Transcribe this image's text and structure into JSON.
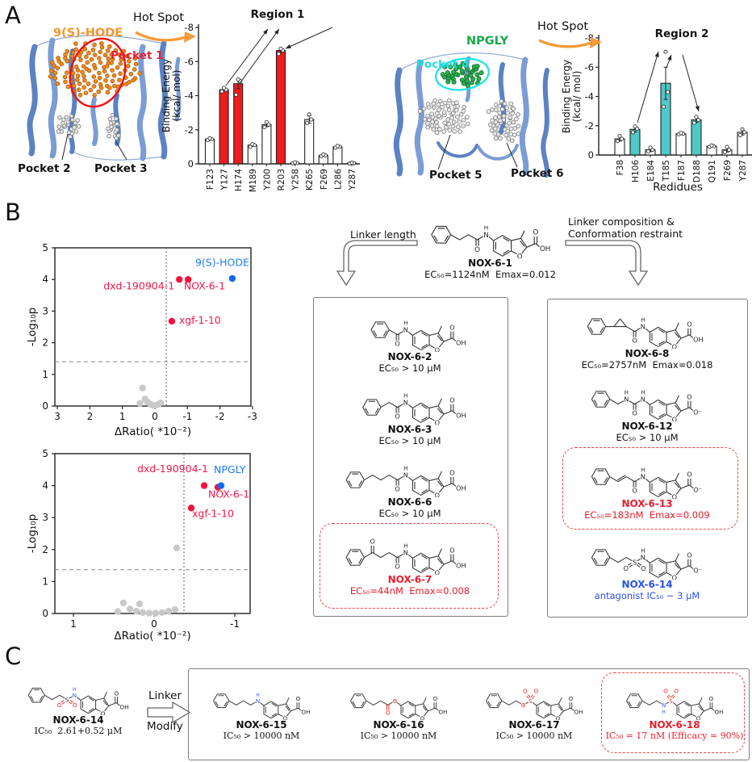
{
  "panelA": {
    "label": "A",
    "left": {
      "ligand": "9(S)-HODE",
      "hotspot": "Hot Spot",
      "pocket1": "Pocket 1",
      "pocket2": "Pocket 2",
      "pocket3": "Pocket 3"
    },
    "right": {
      "ligand": "NPGLY",
      "hotspot": "Hot Spot",
      "pocket4": "Pocket 4",
      "pocket5": "Pocket 5",
      "pocket6": "Pocket 6"
    }
  },
  "chart_data": [
    {
      "id": "region1",
      "type": "bar",
      "title": "Region 1",
      "ylabel": [
        "Binding Energy",
        "(kcal/ mol)"
      ],
      "xlabel": "",
      "ylim": [
        0,
        -8
      ],
      "yticks": [
        0,
        -2,
        -4,
        -6,
        -8
      ],
      "categories": [
        "F123",
        "Y127",
        "H174",
        "M189",
        "Y200",
        "R203",
        "Y258",
        "K265",
        "F269",
        "L286",
        "Y287"
      ],
      "values": [
        -1.45,
        -4.35,
        -4.7,
        -1.1,
        -2.3,
        -6.65,
        -0.05,
        -2.6,
        -0.5,
        -1.0,
        -0.05
      ],
      "errors": [
        0.07,
        0.08,
        0.3,
        0.07,
        0.12,
        0.1,
        0.02,
        0.22,
        0.05,
        0.05,
        0.02
      ],
      "dots": [
        [
          -1.4,
          -1.45,
          -1.5
        ],
        [
          -4.25,
          -4.35,
          -4.45
        ],
        [
          -4.05,
          -4.85,
          -4.95
        ],
        [
          -1.0,
          -1.1,
          -1.15
        ],
        [
          -2.15,
          -2.3,
          -2.45
        ],
        [
          -6.45,
          -6.65,
          -6.75
        ],
        [
          -0.03,
          -0.05,
          -0.08
        ],
        [
          -2.4,
          -2.6,
          -2.9
        ],
        [
          -0.45,
          -0.5,
          -0.55
        ],
        [
          -0.95,
          -1.0,
          -1.05
        ],
        [
          -0.02,
          -0.04,
          -0.06
        ]
      ],
      "highlight": [
        0,
        1,
        1,
        0,
        0,
        1,
        0,
        0,
        0,
        0,
        0
      ],
      "highlight_color": "#ee1c1c",
      "bar_color": "#ffffff",
      "grid": false
    },
    {
      "id": "region2",
      "type": "bar",
      "title": "Region 2",
      "ylabel": [
        "Binding Energy",
        "(kcal/ mol)"
      ],
      "xlabel": "Redidues",
      "ylim": [
        0,
        -8
      ],
      "yticks": [
        0,
        -2,
        -4,
        -6,
        -8
      ],
      "categories": [
        "F38",
        "H106",
        "E184",
        "T185",
        "F187",
        "D188",
        "Q191",
        "F269",
        "Y287"
      ],
      "values": [
        -1.1,
        -1.75,
        -0.35,
        -4.9,
        -1.45,
        -2.4,
        -0.6,
        -0.35,
        -1.55
      ],
      "errors": [
        0.15,
        0.18,
        0.12,
        1.1,
        0.04,
        0.18,
        0.05,
        0.15,
        0.18
      ],
      "dots": [
        [
          -0.95,
          -1.1,
          -1.3
        ],
        [
          -1.55,
          -1.8,
          -1.95
        ],
        [
          -0.25,
          -0.35,
          -0.5
        ],
        [
          -3.3,
          -4.3,
          -7.05
        ],
        [
          -1.42,
          -1.45,
          -1.5
        ],
        [
          -2.2,
          -2.4,
          -2.6
        ],
        [
          -0.55,
          -0.6,
          -0.65
        ],
        [
          -0.2,
          -0.35,
          -0.55
        ],
        [
          -1.35,
          -1.55,
          -1.75
        ]
      ],
      "highlight": [
        0,
        1,
        0,
        1,
        0,
        1,
        0,
        0,
        0
      ],
      "highlight_color": "#4fc8c8",
      "bar_color": "#ffffff",
      "grid": false
    },
    {
      "id": "volcano1",
      "type": "scatter",
      "xlabel": "ΔRatio( *10⁻²)",
      "ylabel": "-Log₁₀p",
      "xlim": [
        3,
        -3
      ],
      "ylim": [
        0,
        5
      ],
      "xticks": [
        3,
        2,
        1,
        0,
        -1,
        -2,
        -3
      ],
      "yticks": [
        0,
        1,
        2,
        3,
        4,
        5
      ],
      "vline": -0.35,
      "hline": 1.4,
      "legend_position": "none",
      "points": [
        {
          "x": 0.38,
          "y": 0.57,
          "c": "gray"
        },
        {
          "x": 0.3,
          "y": 0.22,
          "c": "gray"
        },
        {
          "x": 0.22,
          "y": 0.12,
          "c": "gray"
        },
        {
          "x": 0.14,
          "y": 0.06,
          "c": "gray"
        },
        {
          "x": 0.06,
          "y": 0.02,
          "c": "gray"
        },
        {
          "x": -0.02,
          "y": 0.02,
          "c": "gray"
        },
        {
          "x": -0.1,
          "y": 0.05,
          "c": "gray"
        },
        {
          "x": -0.18,
          "y": 0.1,
          "c": "gray"
        },
        {
          "x": 0.46,
          "y": 0.08,
          "c": "gray"
        },
        {
          "x": -0.75,
          "y": 4.0,
          "c": "red",
          "name": "dxd-190904-1"
        },
        {
          "x": -1.02,
          "y": 4.0,
          "c": "red",
          "name": "NOX-6-1"
        },
        {
          "x": -0.52,
          "y": 2.68,
          "c": "red",
          "name": "xgf-1-10"
        },
        {
          "x": -2.38,
          "y": 4.03,
          "c": "blue",
          "name": "9(S)-HODE"
        }
      ],
      "labels": [
        {
          "text": "9(S)-HODE",
          "x": -1.24,
          "y": 4.42,
          "c": "blue",
          "anchor": "start"
        },
        {
          "text": "dxd-190904-1",
          "x": -0.6,
          "y": 3.68,
          "c": "red",
          "anchor": "end"
        },
        {
          "text": "NOX-6-1",
          "x": -0.89,
          "y": 3.68,
          "c": "red",
          "anchor": "start"
        },
        {
          "text": "xgf-1-10",
          "x": -0.74,
          "y": 2.6,
          "c": "red",
          "anchor": "start"
        }
      ]
    },
    {
      "id": "volcano2",
      "type": "scatter",
      "xlabel": "ΔRatio( *10⁻²)",
      "ylabel": "-Log₁₀p",
      "xlim": [
        1.23,
        -1.19
      ],
      "ylim": [
        0,
        5
      ],
      "xticks": [
        1,
        0,
        -1
      ],
      "yticks": [
        0,
        1,
        2,
        3,
        4,
        5
      ],
      "vline": -0.37,
      "hline": 1.37,
      "legend_position": "none",
      "points": [
        {
          "x": 0.38,
          "y": 0.33,
          "c": "gray"
        },
        {
          "x": 0.3,
          "y": 0.14,
          "c": "gray"
        },
        {
          "x": 0.22,
          "y": 0.07,
          "c": "gray"
        },
        {
          "x": 0.14,
          "y": 0.03,
          "c": "gray"
        },
        {
          "x": 0.06,
          "y": 0.01,
          "c": "gray"
        },
        {
          "x": -0.02,
          "y": 0.01,
          "c": "gray"
        },
        {
          "x": -0.1,
          "y": 0.03,
          "c": "gray"
        },
        {
          "x": -0.18,
          "y": 0.07,
          "c": "gray"
        },
        {
          "x": -0.26,
          "y": 0.12,
          "c": "gray"
        },
        {
          "x": 0.45,
          "y": 0.06,
          "c": "gray"
        },
        {
          "x": 0.18,
          "y": 0.3,
          "c": "gray"
        },
        {
          "x": -0.28,
          "y": 2.05,
          "c": "gray"
        },
        {
          "x": -0.62,
          "y": 4.0,
          "c": "red",
          "name": "dxd-190904-1"
        },
        {
          "x": -0.79,
          "y": 3.95,
          "c": "red",
          "name": "NOX-6-1"
        },
        {
          "x": -0.46,
          "y": 3.3,
          "c": "red",
          "name": "xgf-1-10"
        },
        {
          "x": -0.83,
          "y": 4.0,
          "c": "blue",
          "name": "NPGLY"
        }
      ],
      "labels": [
        {
          "text": "dxd-190904-1",
          "x": -0.67,
          "y": 4.42,
          "c": "red",
          "anchor": "end"
        },
        {
          "text": "NPGLY",
          "x": -0.74,
          "y": 4.4,
          "c": "blue",
          "anchor": "start"
        },
        {
          "text": "NOX-6-1",
          "x": -0.67,
          "y": 3.62,
          "c": "red",
          "anchor": "start"
        },
        {
          "text": "xgf-1-10",
          "x": -0.47,
          "y": 3.02,
          "c": "red",
          "anchor": "start"
        }
      ]
    }
  ],
  "panelB": {
    "label": "B",
    "lead": {
      "name": "NOX-6-1",
      "potency": "EC₅₀=1124nM  Emax=0.012"
    },
    "arrow_left": "Linker length",
    "arrow_right": [
      "Linker composition &",
      "Conformation restraint"
    ],
    "middle_box": {
      "compounds": [
        {
          "name": "NOX-6-2",
          "potency": "EC₅₀ > 10 μM"
        },
        {
          "name": "NOX-6-3",
          "potency": "EC₅₀ > 10 μM"
        },
        {
          "name": "NOX-6-6",
          "potency": "EC₅₀ > 10 μM"
        },
        {
          "name": "NOX-6-7",
          "potency": "EC₅₀=44nM  Emax=0.008"
        }
      ]
    },
    "right_box": {
      "compounds": [
        {
          "name": "NOX-6-8",
          "potency": "EC₅₀=2757nM  Emax=0.018"
        },
        {
          "name": "NOX-6-12",
          "potency": "EC₅₀ > 10 μM"
        },
        {
          "name": "NOX-6-13",
          "potency": "EC₅₀=183nM  Emax=0.009"
        },
        {
          "name": "NOX-6-14",
          "potency": "antagonist IC₅₀ ~ 3 μM"
        }
      ]
    }
  },
  "panelC": {
    "label": "C",
    "lead": {
      "name": "NOX-6-14",
      "potency": "IC₅₀  2.61+0.52 μM"
    },
    "arrow": [
      "Linker",
      "Modify"
    ],
    "compounds": [
      {
        "name": "NOX-6-15",
        "potency": "IC₅₀ > 10000 nM"
      },
      {
        "name": "NOX-6-16",
        "potency": "IC₅₀ > 10000 nM"
      },
      {
        "name": "NOX-6-17",
        "potency": "IC₅₀ > 10000 nM"
      },
      {
        "name": "NOX-6-18",
        "potency": "IC₅₀ = 17 nM (Efficacy = 90%)"
      }
    ]
  },
  "colors": {
    "highlight_red": "#ee1c1c",
    "highlight_teal": "#4fc8c8",
    "point_red": "#f0143c",
    "point_blue": "#1167f2",
    "point_gray": "#c9c9c9",
    "ligand_orange": "#f5962e",
    "ligand_green": "#17a94d",
    "pocket_cyan": "#21d9de",
    "ribbon_blue": "#5b82c3"
  }
}
